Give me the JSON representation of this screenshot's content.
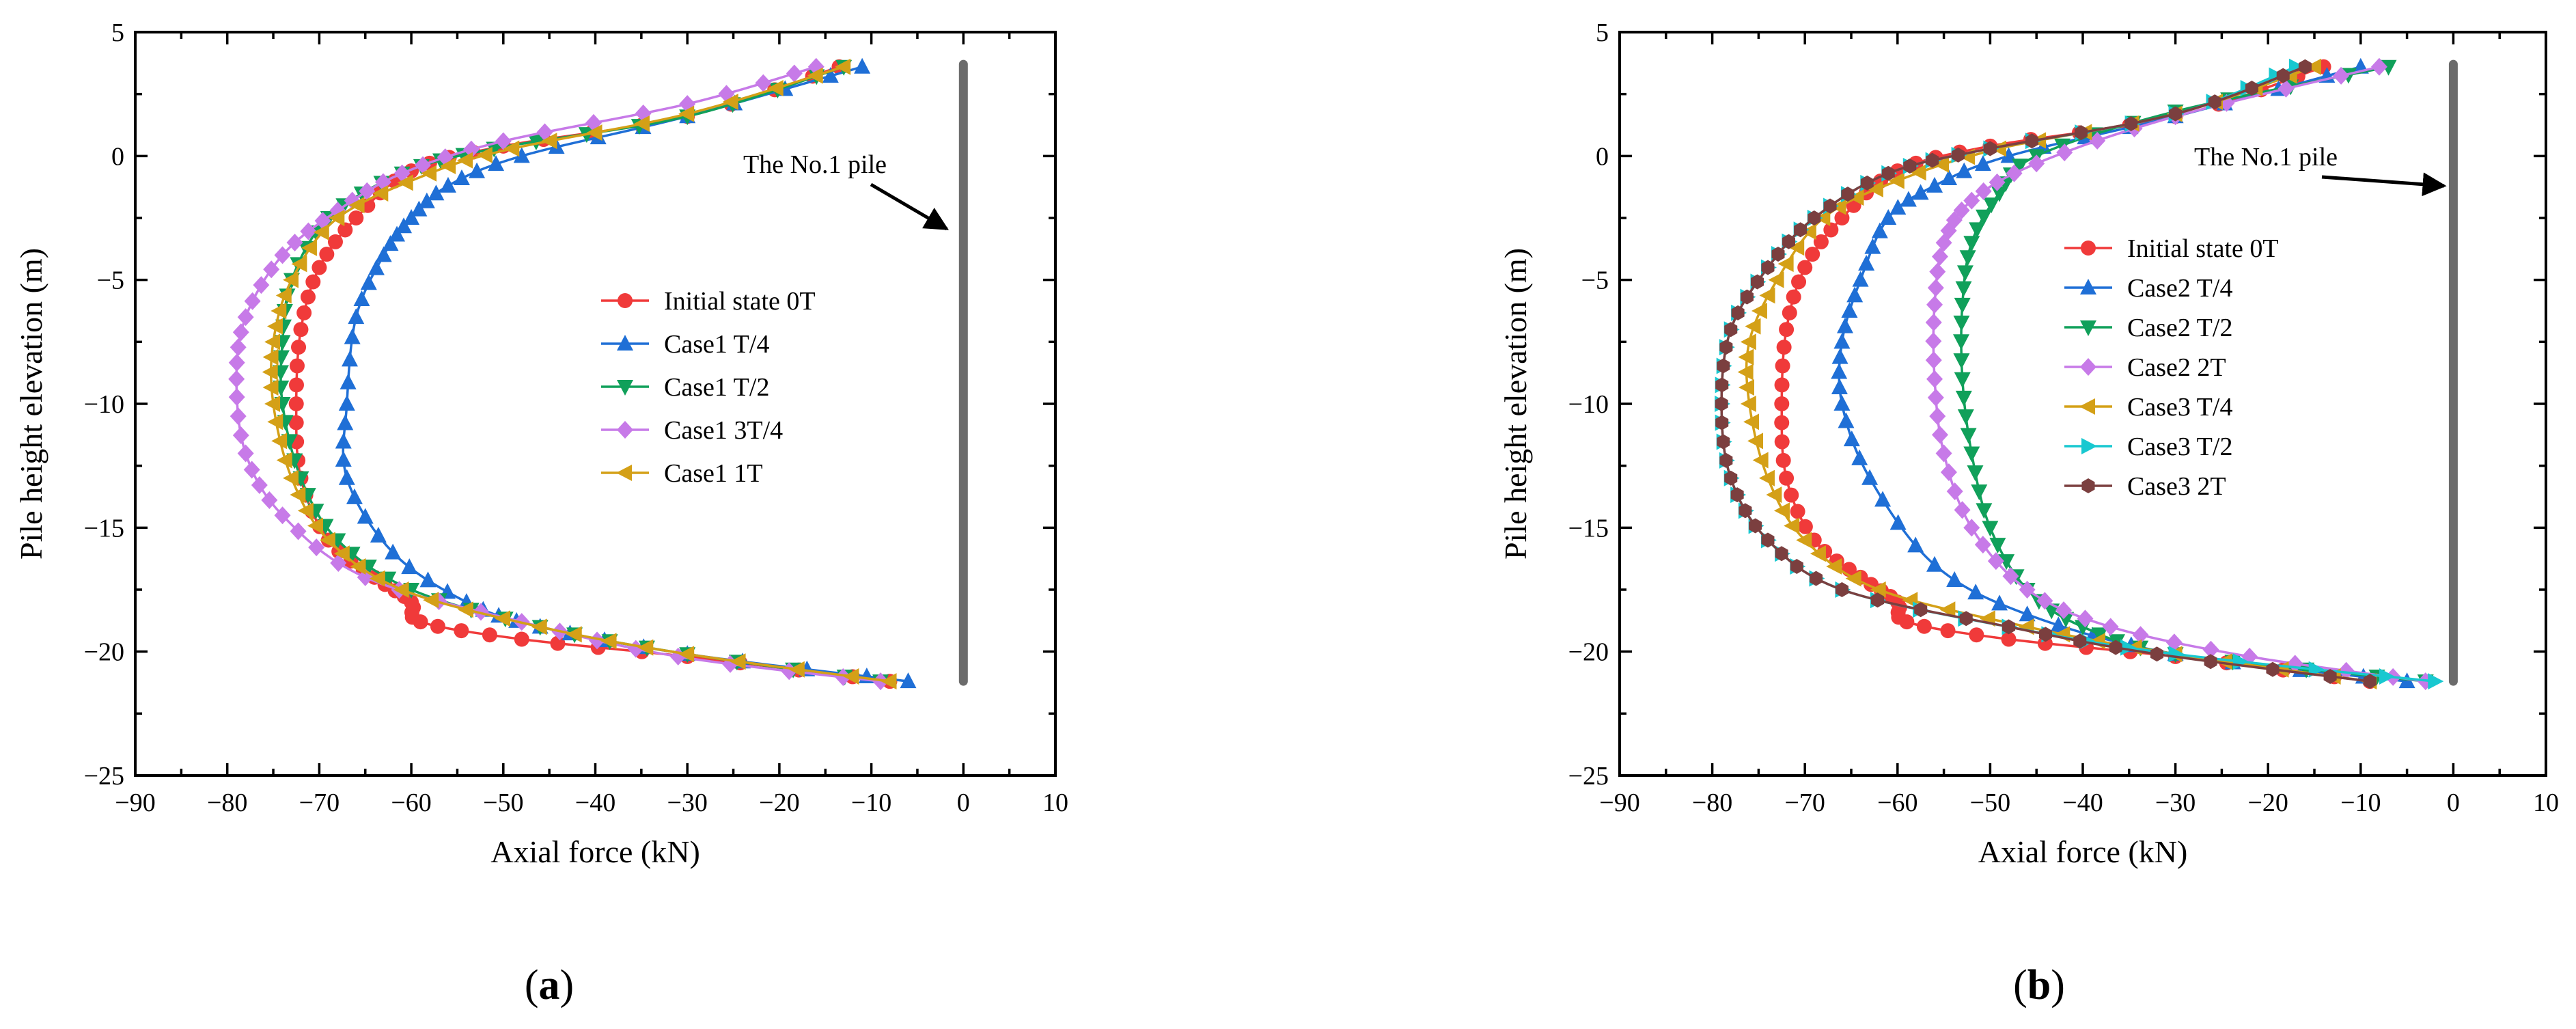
{
  "chart_data": [
    {
      "type": "line",
      "panel_label": "a",
      "xlabel": "Axial force (kN)",
      "ylabel": "Pile height elevation (m)",
      "xlim": [
        -90,
        10
      ],
      "ylim": [
        -25,
        5
      ],
      "xticks": [
        "−90",
        "−80",
        "−70",
        "−60",
        "−50",
        "−40",
        "−30",
        "−20",
        "−10",
        "0",
        "10"
      ],
      "yticks": [
        "−25",
        "−20",
        "−15",
        "−10",
        "−5",
        "0",
        "5"
      ],
      "legend_position": "center-right",
      "annotation": "The No.1 pile",
      "pile": {
        "x": 0,
        "y_top": 3.7,
        "y_bottom": -21.2,
        "color": "#6b6b6b"
      },
      "series": [
        {
          "name": "Initial state 0T",
          "color": "#f03a3a",
          "marker": "circle",
          "x": [
            -13.5,
            -30,
            -50,
            -60,
            -66,
            -70,
            -72,
            -72.5,
            -72,
            -69,
            -64,
            -60,
            -59,
            -48,
            -30,
            -8
          ],
          "y": [
            3.6,
            1.6,
            0.4,
            -0.6,
            -2.5,
            -4.5,
            -7,
            -10,
            -13,
            -15.5,
            -17,
            -18,
            -18.8,
            -19.5,
            -20.2,
            -21.2
          ]
        },
        {
          "name": "Case1 T/4",
          "color": "#1f6fd6",
          "marker": "triangle-up",
          "x": [
            -11,
            -30,
            -48,
            -56,
            -60,
            -63,
            -66,
            -67,
            -67,
            -62,
            -54,
            -46,
            -30,
            -6
          ],
          "y": [
            3.6,
            1.6,
            0,
            -1.2,
            -2.5,
            -4,
            -6.5,
            -10,
            -13,
            -16,
            -18,
            -19,
            -20.1,
            -21.2
          ]
        },
        {
          "name": "Case1 T/2",
          "color": "#10a05a",
          "marker": "triangle-down",
          "x": [
            -13,
            -30,
            -51,
            -61,
            -69,
            -73,
            -74,
            -74,
            -72,
            -68,
            -60,
            -46,
            -30,
            -9
          ],
          "y": [
            3.6,
            1.6,
            0.3,
            -0.7,
            -2.5,
            -5,
            -7.5,
            -10,
            -13,
            -15.5,
            -17.5,
            -19,
            -20.1,
            -21.2
          ]
        },
        {
          "name": "Case1 3T/4",
          "color": "#c77ae8",
          "marker": "diamond",
          "x": [
            -16,
            -30,
            -50,
            -61,
            -68,
            -74,
            -78,
            -79,
            -78,
            -74,
            -65,
            -48,
            -31,
            -9
          ],
          "y": [
            3.6,
            2.1,
            0.6,
            -0.7,
            -2.2,
            -4,
            -6.5,
            -9,
            -12,
            -14.5,
            -17,
            -18.8,
            -20.2,
            -21.2
          ]
        },
        {
          "name": "Case1 1T",
          "color": "#d4a017",
          "marker": "triangle-left",
          "x": [
            -13,
            -30,
            -49,
            -58,
            -68,
            -73,
            -75,
            -75,
            -73,
            -69,
            -61,
            -46,
            -30,
            -8
          ],
          "y": [
            3.6,
            1.7,
            0.3,
            -0.7,
            -2.5,
            -5,
            -7.5,
            -10,
            -13,
            -15.5,
            -17.5,
            -19,
            -20.1,
            -21.2
          ]
        }
      ]
    },
    {
      "type": "line",
      "panel_label": "b",
      "xlabel": "Axial force (kN)",
      "ylabel": "Pile height elevation (m)",
      "xlim": [
        -90,
        10
      ],
      "ylim": [
        -25,
        5
      ],
      "xticks": [
        "−90",
        "−80",
        "−70",
        "−60",
        "−50",
        "−40",
        "−30",
        "−20",
        "−10",
        "0",
        "10"
      ],
      "yticks": [
        "−25",
        "−20",
        "−15",
        "−10",
        "−5",
        "0",
        "5"
      ],
      "legend_position": "center-right",
      "annotation": "The No.1 pile",
      "pile": {
        "x": 0,
        "y_top": 3.7,
        "y_bottom": -21.2,
        "color": "#6b6b6b"
      },
      "series": [
        {
          "name": "Initial state 0T",
          "color": "#f03a3a",
          "marker": "circle",
          "x": [
            -14,
            -30,
            -50,
            -60,
            -66,
            -70,
            -72,
            -72.5,
            -72,
            -69,
            -64,
            -60,
            -59,
            -48,
            -30,
            -9
          ],
          "y": [
            3.6,
            1.6,
            0.4,
            -0.6,
            -2.5,
            -4.5,
            -7,
            -10,
            -13,
            -15.5,
            -17,
            -18,
            -18.8,
            -19.5,
            -20.2,
            -21.2
          ]
        },
        {
          "name": "Case2 T/4",
          "color": "#1f6fd6",
          "marker": "triangle-up",
          "x": [
            -10,
            -30,
            -48,
            -56,
            -61,
            -64,
            -66,
            -66,
            -63,
            -56,
            -46,
            -30,
            -5
          ],
          "y": [
            3.6,
            1.6,
            0,
            -1.2,
            -2.5,
            -5,
            -7.5,
            -10,
            -13,
            -16.5,
            -18.5,
            -20.1,
            -21.2
          ]
        },
        {
          "name": "Case2 T/2",
          "color": "#10a05a",
          "marker": "triangle-down",
          "x": [
            -7,
            -30,
            -45,
            -49,
            -52,
            -53,
            -53,
            -52,
            -50,
            -46,
            -40,
            -30,
            -3
          ],
          "y": [
            3.6,
            1.8,
            0,
            -1.5,
            -3.5,
            -6,
            -9,
            -12,
            -15,
            -17.5,
            -19,
            -20.1,
            -21.2
          ]
        },
        {
          "name": "Case2 2T",
          "color": "#c77ae8",
          "marker": "diamond",
          "x": [
            -8,
            -30,
            -45,
            -52,
            -55,
            -56,
            -56,
            -55,
            -52,
            -46,
            -37,
            -22,
            -3
          ],
          "y": [
            3.6,
            1.6,
            -0.3,
            -1.8,
            -3.5,
            -6,
            -9,
            -12,
            -15,
            -17.5,
            -19,
            -20.2,
            -21.2
          ]
        },
        {
          "name": "Case3 T/4",
          "color": "#d4a017",
          "marker": "triangle-left",
          "x": [
            -15,
            -30,
            -49,
            -60,
            -68,
            -73,
            -76,
            -76,
            -74,
            -70,
            -62,
            -46,
            -30,
            -9
          ],
          "y": [
            3.6,
            1.7,
            0.3,
            -1,
            -2.5,
            -5,
            -7.5,
            -10,
            -13,
            -15.5,
            -17.5,
            -19,
            -20.1,
            -21.2
          ]
        },
        {
          "name": "Case3 T/2",
          "color": "#18c8d0",
          "marker": "triangle-right",
          "x": [
            -17,
            -30,
            -50,
            -61,
            -69,
            -74,
            -78,
            -79,
            -78,
            -74,
            -66,
            -48,
            -30,
            -2
          ],
          "y": [
            3.6,
            1.7,
            0.3,
            -0.7,
            -2.5,
            -4.5,
            -7,
            -10,
            -13,
            -15.5,
            -17.5,
            -19,
            -20.1,
            -21.2
          ]
        },
        {
          "name": "Case3 2T",
          "color": "#7b3f3f",
          "marker": "hexagon",
          "x": [
            -16,
            -30,
            -50,
            -61,
            -69,
            -74,
            -78,
            -79,
            -78,
            -74,
            -66,
            -48,
            -32,
            -9
          ],
          "y": [
            3.6,
            1.7,
            0.3,
            -0.7,
            -2.5,
            -4.5,
            -7,
            -10,
            -13,
            -15.5,
            -17.5,
            -19,
            -20.1,
            -21.2
          ]
        }
      ]
    }
  ]
}
